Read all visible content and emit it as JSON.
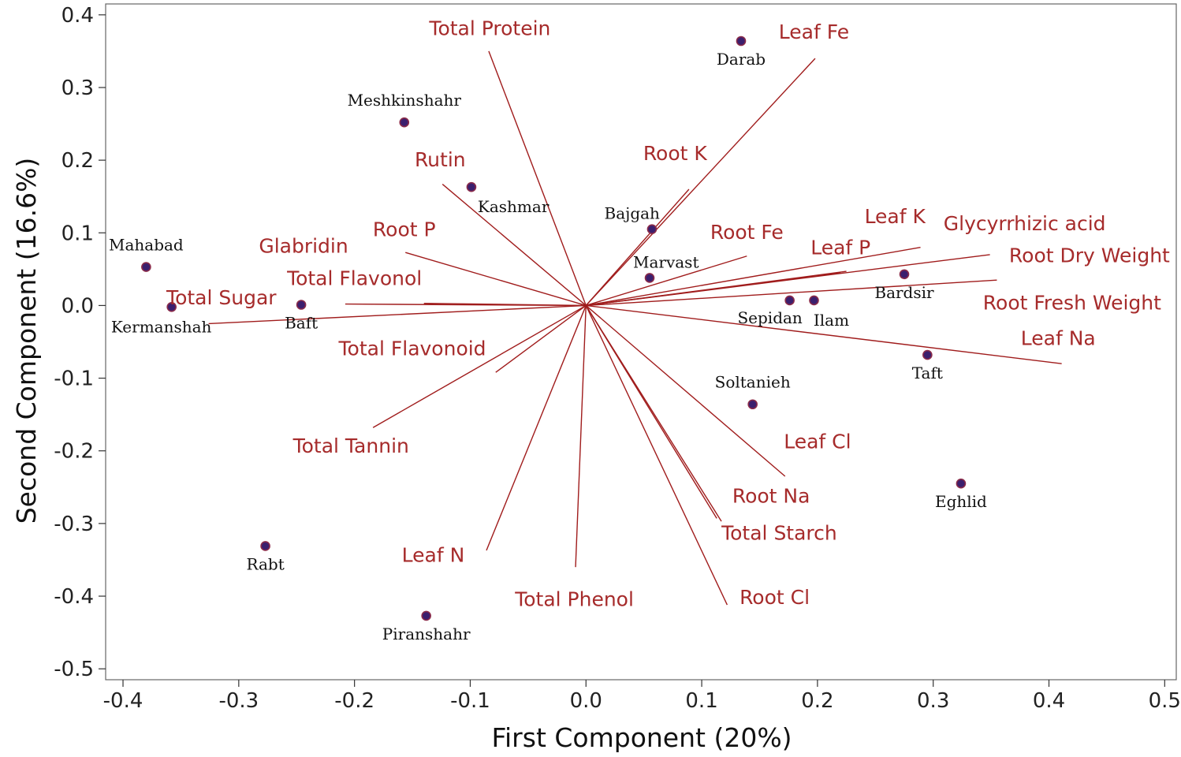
{
  "chart_data": {
    "type": "scatter",
    "subtype": "biplot",
    "xlabel": "First Component (20%)",
    "ylabel": "Second Component (16.6%)",
    "xlim": [
      -0.415,
      0.51
    ],
    "ylim": [
      -0.515,
      0.415
    ],
    "xticks": [
      -0.4,
      -0.3,
      -0.2,
      -0.1,
      0.0,
      0.1,
      0.2,
      0.3,
      0.4,
      0.5
    ],
    "xtick_labels": [
      "-0.4",
      "-0.3",
      "-0.2",
      "-0.1",
      "0.0",
      "0.1",
      "0.2",
      "0.3",
      "0.4",
      "0.5"
    ],
    "yticks": [
      0.4,
      0.3,
      0.2,
      0.1,
      0.0,
      -0.1,
      -0.2,
      -0.3,
      -0.4,
      -0.5
    ],
    "ytick_labels": [
      "0.4",
      "0.3",
      "0.2",
      "0.1",
      "0.0",
      "-0.1",
      "-0.2",
      "-0.3",
      "-0.4",
      "-0.5"
    ],
    "colors": {
      "point_fill": "#3b1f6e",
      "point_edge": "#8a2b4a",
      "vector": "#a01c1c",
      "var_label": "#a62b2b",
      "frame": "#666666"
    },
    "points": [
      {
        "name": "Darab",
        "x": 0.134,
        "y": 0.364,
        "label_pos": "below"
      },
      {
        "name": "Meshkinshahr",
        "x": -0.157,
        "y": 0.252,
        "label_pos": "above"
      },
      {
        "name": "Kashmar",
        "x": -0.099,
        "y": 0.163,
        "label_pos": "below-right"
      },
      {
        "name": "Bajgah",
        "x": 0.057,
        "y": 0.105,
        "label_pos": "above-left"
      },
      {
        "name": "Marvast",
        "x": 0.055,
        "y": 0.038,
        "label_pos": "above-right"
      },
      {
        "name": "Mahabad",
        "x": -0.38,
        "y": 0.053,
        "label_pos": "above"
      },
      {
        "name": "Kermanshah",
        "x": -0.358,
        "y": -0.002,
        "label_pos": "below-left"
      },
      {
        "name": "Baft",
        "x": -0.246,
        "y": 0.001,
        "label_pos": "below"
      },
      {
        "name": "Bardsir",
        "x": 0.275,
        "y": 0.043,
        "label_pos": "below"
      },
      {
        "name": "Sepidan",
        "x": 0.176,
        "y": 0.007,
        "label_pos": "below-left"
      },
      {
        "name": "Ilam",
        "x": 0.197,
        "y": 0.007,
        "label_pos": "below-right"
      },
      {
        "name": "Taft",
        "x": 0.295,
        "y": -0.068,
        "label_pos": "below"
      },
      {
        "name": "Soltanieh",
        "x": 0.144,
        "y": -0.136,
        "label_pos": "above"
      },
      {
        "name": "Eghlid",
        "x": 0.324,
        "y": -0.245,
        "label_pos": "below"
      },
      {
        "name": "Rabt",
        "x": -0.277,
        "y": -0.331,
        "label_pos": "below"
      },
      {
        "name": "Piranshahr",
        "x": -0.138,
        "y": -0.427,
        "label_pos": "below"
      }
    ],
    "vectors": [
      {
        "name": "Total Protein",
        "x": -0.084,
        "y": 0.35
      },
      {
        "name": "Leaf Fe",
        "x": 0.198,
        "y": 0.34
      },
      {
        "name": "Root K",
        "x": 0.089,
        "y": 0.16
      },
      {
        "name": "Rutin",
        "x": -0.124,
        "y": 0.167
      },
      {
        "name": "Root P",
        "x": -0.156,
        "y": 0.073
      },
      {
        "name": "Glabridin",
        "x": -0.208,
        "y": 0.002
      },
      {
        "name": "Total Flavonol",
        "x": -0.14,
        "y": 0.003
      },
      {
        "name": "Total Sugar",
        "x": -0.326,
        "y": -0.025
      },
      {
        "name": "Total Flavonoid",
        "x": -0.078,
        "y": -0.092
      },
      {
        "name": "Total Tannin",
        "x": -0.184,
        "y": -0.168
      },
      {
        "name": "Leaf N",
        "x": -0.086,
        "y": -0.337
      },
      {
        "name": "Total Phenol",
        "x": -0.009,
        "y": -0.36
      },
      {
        "name": "Root Cl",
        "x": 0.122,
        "y": -0.412
      },
      {
        "name": "Total Starch",
        "x": 0.117,
        "y": -0.297
      },
      {
        "name": "Root Na",
        "x": 0.113,
        "y": -0.293
      },
      {
        "name": "Leaf Cl",
        "x": 0.172,
        "y": -0.235
      },
      {
        "name": "Leaf Na",
        "x": 0.411,
        "y": -0.08
      },
      {
        "name": "Root Fresh Weight",
        "x": 0.355,
        "y": 0.035
      },
      {
        "name": "Root Dry Weight",
        "x": 0.349,
        "y": 0.07
      },
      {
        "name": "Glycyrrhizic acid",
        "x": 0.289,
        "y": 0.08
      },
      {
        "name": "Leaf K",
        "x": 0.225,
        "y": 0.047
      },
      {
        "name": "Leaf P",
        "x": 0.22,
        "y": 0.045
      },
      {
        "name": "Root Fe",
        "x": 0.139,
        "y": 0.068
      }
    ],
    "var_labels": [
      {
        "name": "Total Protein",
        "lx": -0.083,
        "ly": 0.38
      },
      {
        "name": "Leaf Fe",
        "lx": 0.197,
        "ly": 0.375
      },
      {
        "name": "Root K",
        "lx": 0.077,
        "ly": 0.208
      },
      {
        "name": "Rutin",
        "lx": -0.126,
        "ly": 0.199
      },
      {
        "name": "Root P",
        "lx": -0.157,
        "ly": 0.103
      },
      {
        "name": "Glabridin",
        "lx": -0.244,
        "ly": 0.08
      },
      {
        "name": "Total Flavonol",
        "lx": -0.2,
        "ly": 0.036
      },
      {
        "name": "Total Sugar",
        "lx": -0.315,
        "ly": 0.009
      },
      {
        "name": "Total Flavonoid",
        "lx": -0.15,
        "ly": -0.061
      },
      {
        "name": "Total Tannin",
        "lx": -0.203,
        "ly": -0.195
      },
      {
        "name": "Leaf N",
        "lx": -0.132,
        "ly": -0.345
      },
      {
        "name": "Total Phenol",
        "lx": -0.01,
        "ly": -0.406
      },
      {
        "name": "Root Cl",
        "lx": 0.163,
        "ly": -0.403
      },
      {
        "name": "Total Starch",
        "lx": 0.167,
        "ly": -0.315
      },
      {
        "name": "Root Na",
        "lx": 0.16,
        "ly": -0.264
      },
      {
        "name": "Leaf Cl",
        "lx": 0.2,
        "ly": -0.189
      },
      {
        "name": "Leaf Na",
        "lx": 0.408,
        "ly": -0.047
      },
      {
        "name": "Root Fresh Weight",
        "lx": 0.42,
        "ly": 0.002
      },
      {
        "name": "Root Dry Weight",
        "lx": 0.435,
        "ly": 0.067
      },
      {
        "name": "Glycyrrhizic acid",
        "lx": 0.379,
        "ly": 0.111
      },
      {
        "name": "Leaf K",
        "lx": 0.267,
        "ly": 0.121
      },
      {
        "name": "Leaf P",
        "lx": 0.22,
        "ly": 0.078
      },
      {
        "name": "Root Fe",
        "lx": 0.139,
        "ly": 0.099
      }
    ]
  }
}
